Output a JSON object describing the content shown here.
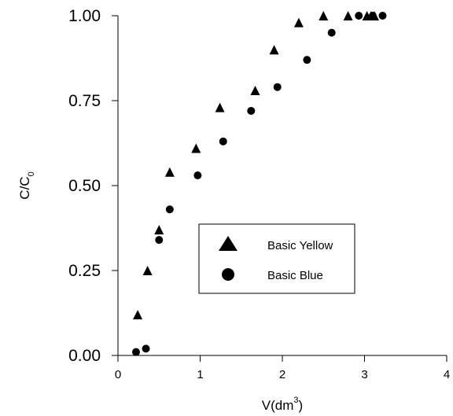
{
  "chart_data": {
    "type": "scatter",
    "title": "",
    "xlabel": "V(dm",
    "xlabel_sup": "3",
    "xlabel_close": ")",
    "ylabel": "C/C",
    "ylabel_sub": "0",
    "xlim": [
      0,
      4
    ],
    "ylim": [
      0,
      1
    ],
    "x_ticks": [
      0,
      1,
      2,
      3,
      4
    ],
    "x_tick_labels": [
      "0",
      "1",
      "2",
      "3",
      "4"
    ],
    "y_ticks": [
      0,
      0.25,
      0.5,
      0.75,
      1.0
    ],
    "y_tick_labels": [
      "0.00",
      "0.25",
      "0.50",
      "0.75",
      "1.00"
    ],
    "grid": false,
    "legend_placement": "center-right",
    "series": [
      {
        "name": "Basic Yellow",
        "marker": "triangle",
        "color": "#000000",
        "x": [
          0.24,
          0.36,
          0.5,
          0.63,
          0.95,
          1.24,
          1.67,
          1.9,
          2.2,
          2.5,
          2.8,
          3.03,
          3.08,
          3.12
        ],
        "y": [
          0.12,
          0.25,
          0.37,
          0.54,
          0.61,
          0.73,
          0.78,
          0.9,
          0.98,
          1.0,
          1.0,
          1.0,
          1.0,
          1.0
        ]
      },
      {
        "name": "Basic Blue",
        "marker": "circle",
        "color": "#000000",
        "x": [
          0.22,
          0.34,
          0.5,
          0.63,
          0.97,
          1.28,
          1.62,
          1.94,
          2.3,
          2.6,
          2.93,
          3.1,
          3.22
        ],
        "y": [
          0.01,
          0.02,
          0.34,
          0.43,
          0.53,
          0.63,
          0.72,
          0.79,
          0.87,
          0.95,
          1.0,
          1.0,
          1.0
        ]
      }
    ]
  }
}
